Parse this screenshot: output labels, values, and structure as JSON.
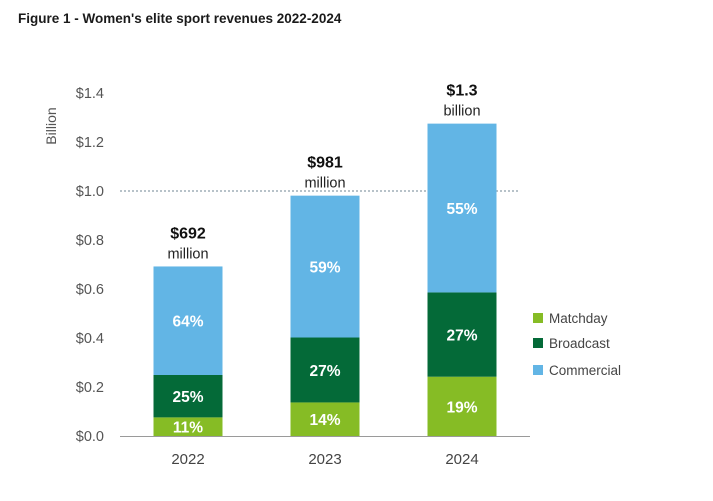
{
  "title": "Figure 1 - Women's elite sport revenues 2022-2024",
  "chart_data": {
    "type": "bar",
    "stacked": true,
    "categories": [
      "2022",
      "2023",
      "2024"
    ],
    "ylabel": "Billion",
    "ylim": [
      0,
      1.4
    ],
    "yticks": [
      {
        "value": 0.0,
        "label": "$0.0"
      },
      {
        "value": 0.2,
        "label": "$0.2"
      },
      {
        "value": 0.4,
        "label": "$0.4"
      },
      {
        "value": 0.6,
        "label": "$0.6"
      },
      {
        "value": 0.8,
        "label": "$0.8"
      },
      {
        "value": 1.0,
        "label": "$1.0"
      },
      {
        "value": 1.2,
        "label": "$1.2"
      },
      {
        "value": 1.4,
        "label": "$1.4"
      }
    ],
    "reference_line": {
      "value": 1.0,
      "style": "dotted"
    },
    "totals": [
      {
        "value": 0.692,
        "label": "$692",
        "unit": "million"
      },
      {
        "value": 0.981,
        "label": "$981",
        "unit": "million"
      },
      {
        "value": 1.275,
        "label": "$1.3",
        "unit": "billion"
      }
    ],
    "series": [
      {
        "name": "Matchday",
        "color": "#86bc25",
        "shares": [
          11,
          14,
          19
        ],
        "labels": [
          "11%",
          "14%",
          "19%"
        ],
        "values": [
          0.076,
          0.137,
          0.242
        ]
      },
      {
        "name": "Broadcast",
        "color": "#046a38",
        "shares": [
          25,
          27,
          27
        ],
        "labels": [
          "25%",
          "27%",
          "27%"
        ],
        "values": [
          0.173,
          0.265,
          0.344
        ]
      },
      {
        "name": "Commercial",
        "color": "#62b5e5",
        "shares": [
          64,
          59,
          55
        ],
        "labels": [
          "64%",
          "59%",
          "55%"
        ],
        "values": [
          0.443,
          0.579,
          0.689
        ]
      }
    ],
    "legend_position": "right",
    "grid": false
  }
}
